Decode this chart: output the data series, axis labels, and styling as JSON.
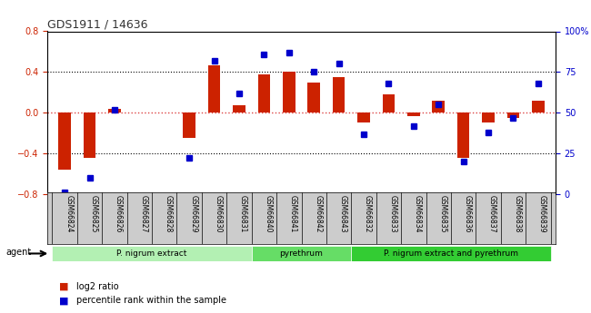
{
  "title": "GDS1911 / 14636",
  "samples": [
    "GSM66824",
    "GSM66825",
    "GSM66826",
    "GSM66827",
    "GSM66828",
    "GSM66829",
    "GSM66830",
    "GSM66831",
    "GSM66840",
    "GSM66841",
    "GSM66842",
    "GSM66843",
    "GSM66832",
    "GSM66833",
    "GSM66834",
    "GSM66835",
    "GSM66836",
    "GSM66837",
    "GSM66838",
    "GSM66839"
  ],
  "log2_ratio": [
    -0.56,
    -0.44,
    0.04,
    0.0,
    0.0,
    -0.25,
    0.47,
    0.07,
    0.38,
    0.4,
    0.3,
    0.35,
    -0.1,
    0.18,
    -0.03,
    0.12,
    -0.44,
    -0.1,
    -0.05,
    0.12
  ],
  "percentile": [
    1,
    10,
    52,
    null,
    null,
    22,
    82,
    62,
    86,
    87,
    75,
    80,
    37,
    68,
    42,
    55,
    20,
    38,
    47,
    68
  ],
  "groups": [
    {
      "label": "P. nigrum extract",
      "start": 0,
      "end": 7,
      "color": "#b3f0b3"
    },
    {
      "label": "pyrethrum",
      "start": 8,
      "end": 11,
      "color": "#66dd66"
    },
    {
      "label": "P. nigrum extract and pyrethrum",
      "start": 12,
      "end": 19,
      "color": "#33cc33"
    }
  ],
  "bar_color": "#cc2200",
  "dot_color": "#0000cc",
  "ylim_left": [
    -0.8,
    0.8
  ],
  "ylim_right": [
    0,
    100
  ],
  "yticks_left": [
    -0.8,
    -0.4,
    0.0,
    0.4,
    0.8
  ],
  "yticks_right": [
    0,
    25,
    50,
    75,
    100
  ],
  "ytick_labels_right": [
    "0",
    "25",
    "50",
    "75",
    "100%"
  ],
  "hline_color": "#dd4444",
  "grid_color": "#000000",
  "background_color": "#ffffff"
}
